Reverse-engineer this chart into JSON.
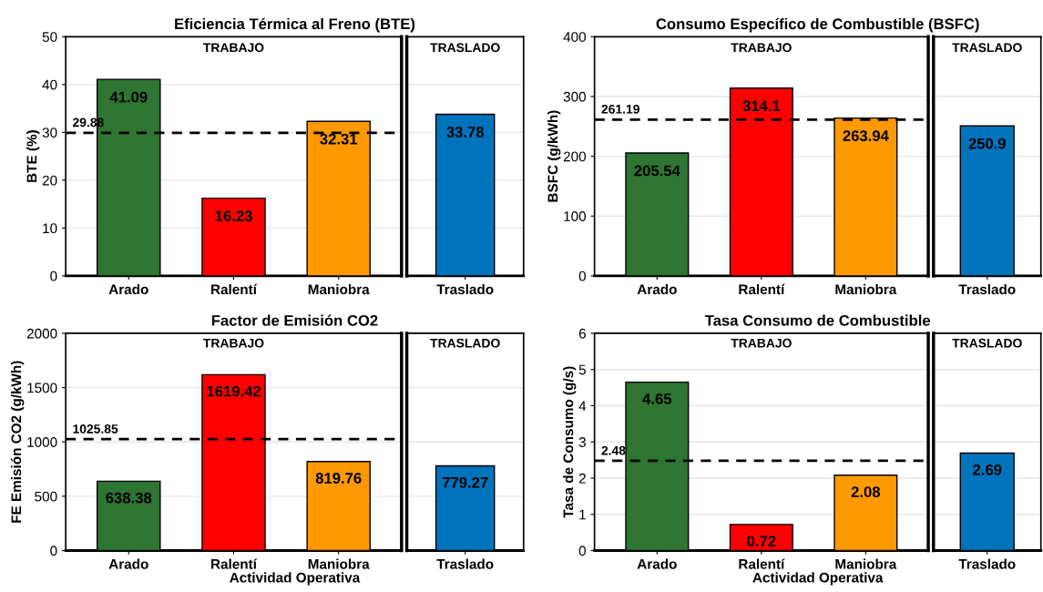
{
  "chart_data": [
    {
      "type": "bar",
      "title": "Eficiencia Térmica al Freno (BTE)",
      "subtitle": "TRABAJO",
      "ylabel": "BTE (%)",
      "categories": [
        "Arado",
        "Ralentí",
        "Maniobra"
      ],
      "values": [
        41.09,
        16.23,
        32.31
      ],
      "colors": [
        "#2e7432",
        "#ff0000",
        "#ff9900"
      ],
      "ylim": [
        0,
        50
      ],
      "yticks": [
        0,
        10,
        20,
        30,
        40,
        50
      ],
      "grid": "y",
      "data_labels": true,
      "ref_lines": [
        {
          "axis": "y",
          "value": 29.88,
          "label": "29.88",
          "line_style": "dashed",
          "color": "#000000"
        }
      ]
    },
    {
      "type": "bar",
      "subtitle": "TRASLADO",
      "categories": [
        "Traslado"
      ],
      "values": [
        33.78
      ],
      "colors": [
        "#0073bd"
      ],
      "ylim": [
        0,
        50
      ],
      "yticks": [
        0,
        10,
        20,
        30,
        40,
        50
      ],
      "grid": "y",
      "data_labels": true,
      "tick_labels": "x"
    },
    {
      "type": "bar",
      "title": "Consumo Específico de Combustible (BSFC)",
      "subtitle": "TRABAJO",
      "ylabel": "BSFC (g/kWh)",
      "categories": [
        "Arado",
        "Ralentí",
        "Maniobra"
      ],
      "values": [
        205.54,
        314.1,
        263.94
      ],
      "colors": [
        "#2e7432",
        "#ff0000",
        "#ff9900"
      ],
      "ylim": [
        0,
        400
      ],
      "yticks": [
        0,
        100,
        200,
        300,
        400
      ],
      "grid": "y",
      "data_labels": true,
      "ref_lines": [
        {
          "axis": "y",
          "value": 261.19,
          "label": "261.19",
          "line_style": "dashed",
          "color": "#000000"
        }
      ]
    },
    {
      "type": "bar",
      "subtitle": "TRASLADO",
      "categories": [
        "Traslado"
      ],
      "values": [
        250.9
      ],
      "colors": [
        "#0073bd"
      ],
      "ylim": [
        0,
        400
      ],
      "yticks": [
        0,
        100,
        200,
        300,
        400
      ],
      "grid": "y",
      "data_labels": true,
      "tick_labels": "x"
    },
    {
      "type": "bar",
      "title": "Factor de Emisión CO2",
      "subtitle": "TRABAJO",
      "ylabel": "FE Emisión CO2 (g/kWh)",
      "xlabel": "Actividad Operativa",
      "categories": [
        "Arado",
        "Ralentí",
        "Maniobra"
      ],
      "values": [
        638.38,
        1619.42,
        819.76
      ],
      "colors": [
        "#2e7432",
        "#ff0000",
        "#ff9900"
      ],
      "ylim": [
        0,
        2000
      ],
      "yticks": [
        0,
        500,
        1000,
        1500,
        2000
      ],
      "grid": "y",
      "data_labels": true,
      "ref_lines": [
        {
          "axis": "y",
          "value": 1025.85,
          "label": "1025.85",
          "line_style": "dashed",
          "color": "#000000"
        }
      ]
    },
    {
      "type": "bar",
      "subtitle": "TRASLADO",
      "categories": [
        "Traslado"
      ],
      "values": [
        779.27
      ],
      "colors": [
        "#0073bd"
      ],
      "ylim": [
        0,
        2000
      ],
      "yticks": [
        0,
        500,
        1000,
        1500,
        2000
      ],
      "grid": "y",
      "data_labels": true,
      "tick_labels": "x"
    },
    {
      "type": "bar",
      "title": "Tasa Consumo de Combustible",
      "subtitle": "TRABAJO",
      "ylabel": "Tasa de Consumo (g/s)",
      "xlabel": "Actividad Operativa",
      "categories": [
        "Arado",
        "Ralentí",
        "Maniobra"
      ],
      "values": [
        4.65,
        0.72,
        2.08
      ],
      "colors": [
        "#2e7432",
        "#ff0000",
        "#ff9900"
      ],
      "ylim": [
        0,
        6
      ],
      "yticks": [
        0,
        1,
        2,
        3,
        4,
        5,
        6
      ],
      "grid": "y",
      "data_labels": true,
      "ref_lines": [
        {
          "axis": "y",
          "value": 2.48,
          "label": "2.48",
          "line_style": "dashed",
          "color": "#000000"
        }
      ]
    },
    {
      "type": "bar",
      "subtitle": "TRASLADO",
      "categories": [
        "Traslado"
      ],
      "values": [
        2.69
      ],
      "colors": [
        "#0073bd"
      ],
      "ylim": [
        0,
        6
      ],
      "yticks": [
        0,
        1,
        2,
        3,
        4,
        5,
        6
      ],
      "grid": "y",
      "data_labels": true,
      "tick_labels": "x"
    }
  ]
}
